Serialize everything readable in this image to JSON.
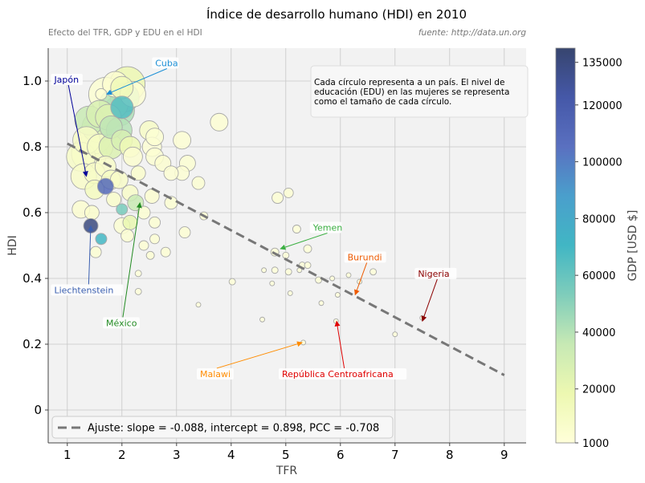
{
  "chart_data": {
    "type": "scatter",
    "title": "Índice de desarrollo humano (HDI) en 2010",
    "subtitle_left": "Efecto del TFR, GDP y EDU en el HDI",
    "subtitle_right": "fuente: http://data.un.org",
    "xlabel": "TFR",
    "ylabel": "HDI",
    "xlim": [
      0.65,
      9.4
    ],
    "ylim": [
      -0.1,
      1.1
    ],
    "xticks": [
      1,
      2,
      3,
      4,
      5,
      6,
      7,
      8,
      9
    ],
    "yticks": [
      0.0,
      0.2,
      0.4,
      0.6,
      0.8,
      1.0
    ],
    "ytick_labels": [
      "0",
      "0.2",
      "0.4",
      "0.6",
      "0.8",
      "1.0"
    ],
    "grid": true,
    "info_box": "Cada círculo representa a un país. El nivel de educación (EDU) en las mujeres se representa como el tamaño de cada círculo.",
    "info_lines": [
      "Cada círculo representa a un país. El nivel de",
      "educación (EDU) en las mujeres se representa",
      "como el tamaño de cada círculo."
    ],
    "fit": {
      "slope": -0.088,
      "intercept": 0.898,
      "pcc": -0.708,
      "x_range": [
        1,
        9
      ],
      "label": "Ajuste: slope = -0.088, intercept = 0.898, PCC = -0.708"
    },
    "colorbar": {
      "label": "GDP [USD $]",
      "min": 1000,
      "max": 140000,
      "ticks": [
        1000,
        20000,
        40000,
        60000,
        80000,
        100000,
        120000,
        135000
      ],
      "tick_labels": [
        "1000",
        "20000",
        "40000",
        "60000",
        "80000",
        "100000",
        "120000",
        "135000"
      ],
      "colors": [
        "#ffffd9",
        "#edf8b1",
        "#c7e9b4",
        "#7fcdbb",
        "#41b6c4",
        "#4a9fcc",
        "#5a70c0",
        "#4558a8",
        "#37456f"
      ]
    },
    "annotations": [
      {
        "text": "Japón",
        "color": "#000099",
        "target": [
          1.35,
          0.71
        ],
        "label_pos": [
          0.73,
          1.0
        ]
      },
      {
        "text": "Cuba",
        "color": "#1b8fd6",
        "target": [
          1.72,
          0.96
        ],
        "label_pos": [
          2.58,
          1.05
        ]
      },
      {
        "text": "Liechtenstein",
        "color": "#3a5fb0",
        "target": [
          1.43,
          0.56
        ],
        "label_pos": [
          0.73,
          0.36
        ]
      },
      {
        "text": "México",
        "color": "#228b22",
        "target": [
          2.33,
          0.63
        ],
        "label_pos": [
          1.68,
          0.26
        ]
      },
      {
        "text": "Yemen",
        "color": "#3cb043",
        "target": [
          4.9,
          0.49
        ],
        "label_pos": [
          5.47,
          0.55
        ]
      },
      {
        "text": "Burundi",
        "color": "#ee5a00",
        "target": [
          6.27,
          0.35
        ],
        "label_pos": [
          6.1,
          0.46
        ]
      },
      {
        "text": "Nigeria",
        "color": "#8b0000",
        "target": [
          7.5,
          0.27
        ],
        "label_pos": [
          7.39,
          0.41
        ]
      },
      {
        "text": "Malawi",
        "color": "#ff8c00",
        "target": [
          5.3,
          0.205
        ],
        "label_pos": [
          3.4,
          0.105
        ]
      },
      {
        "text": "República Centroafricana",
        "color": "#e00000",
        "target": [
          5.93,
          0.27
        ],
        "label_pos": [
          4.9,
          0.105
        ]
      }
    ],
    "points": [
      [
        1.62,
        0.96,
        7,
        3000
      ],
      [
        1.7,
        0.96,
        21,
        4000
      ],
      [
        1.88,
        0.99,
        16,
        5000
      ],
      [
        2.0,
        0.98,
        14,
        15000
      ],
      [
        2.1,
        0.99,
        22,
        18000
      ],
      [
        2.05,
        0.95,
        18,
        45000
      ],
      [
        2.2,
        0.96,
        16,
        3000
      ],
      [
        1.85,
        0.93,
        18,
        40000
      ],
      [
        1.95,
        0.91,
        19,
        42000
      ],
      [
        2.0,
        0.92,
        14,
        65000
      ],
      [
        1.6,
        0.9,
        17,
        28000
      ],
      [
        1.75,
        0.89,
        16,
        26000
      ],
      [
        1.4,
        0.88,
        18,
        35000
      ],
      [
        1.55,
        0.86,
        19,
        30000
      ],
      [
        1.8,
        0.86,
        14,
        38000
      ],
      [
        1.95,
        0.85,
        16,
        40000
      ],
      [
        1.5,
        0.83,
        21,
        10000
      ],
      [
        1.35,
        0.82,
        17,
        9000
      ],
      [
        1.4,
        0.78,
        22,
        9000
      ],
      [
        1.25,
        0.77,
        18,
        9000
      ],
      [
        1.6,
        0.8,
        16,
        10000
      ],
      [
        1.8,
        0.8,
        15,
        26000
      ],
      [
        2.0,
        0.82,
        13,
        28000
      ],
      [
        2.15,
        0.8,
        13,
        16000
      ],
      [
        2.5,
        0.85,
        12,
        9000
      ],
      [
        2.6,
        0.83,
        11,
        4000
      ],
      [
        2.55,
        0.8,
        12,
        3000
      ],
      [
        2.2,
        0.77,
        12,
        5000
      ],
      [
        2.6,
        0.77,
        11,
        4000
      ],
      [
        3.1,
        0.82,
        11,
        3000
      ],
      [
        2.75,
        0.75,
        10,
        5000
      ],
      [
        3.1,
        0.72,
        9,
        3000
      ],
      [
        2.9,
        0.72,
        9,
        3000
      ],
      [
        3.2,
        0.75,
        10,
        4000
      ],
      [
        3.4,
        0.69,
        8,
        4000
      ],
      [
        1.3,
        0.71,
        16,
        8000
      ],
      [
        1.5,
        0.72,
        13,
        9000
      ],
      [
        1.7,
        0.74,
        13,
        8000
      ],
      [
        1.5,
        0.67,
        12,
        12000
      ],
      [
        1.8,
        0.7,
        12,
        10000
      ],
      [
        1.7,
        0.68,
        10,
        110000
      ],
      [
        1.95,
        0.7,
        11,
        8000
      ],
      [
        2.15,
        0.66,
        10,
        8000
      ],
      [
        2.3,
        0.72,
        9,
        6000
      ],
      [
        2.55,
        0.65,
        9,
        5000
      ],
      [
        2.9,
        0.63,
        8,
        4000
      ],
      [
        2.4,
        0.6,
        8,
        4000
      ],
      [
        2.6,
        0.57,
        7,
        4000
      ],
      [
        2.15,
        0.57,
        9,
        20000
      ],
      [
        1.25,
        0.61,
        11,
        5000
      ],
      [
        1.45,
        0.6,
        9,
        6000
      ],
      [
        1.85,
        0.64,
        9,
        7000
      ],
      [
        2.0,
        0.61,
        7,
        55000
      ],
      [
        2.25,
        0.63,
        10,
        35000
      ],
      [
        2.0,
        0.56,
        10,
        4000
      ],
      [
        2.1,
        0.53,
        8,
        4000
      ],
      [
        2.4,
        0.5,
        6,
        3000
      ],
      [
        2.6,
        0.52,
        6,
        3000
      ],
      [
        2.8,
        0.48,
        6,
        3000
      ],
      [
        3.15,
        0.54,
        7,
        3000
      ],
      [
        1.52,
        0.48,
        7,
        4000
      ],
      [
        1.43,
        0.56,
        9,
        135000
      ],
      [
        1.62,
        0.52,
        7,
        70000
      ],
      [
        2.52,
        0.47,
        5,
        3000
      ],
      [
        3.5,
        0.59,
        5,
        3000
      ],
      [
        3.78,
        0.875,
        11,
        3000
      ],
      [
        4.85,
        0.645,
        7,
        3000
      ],
      [
        5.05,
        0.66,
        6,
        3000
      ],
      [
        5.2,
        0.55,
        5,
        2000
      ],
      [
        5.4,
        0.49,
        5,
        2000
      ],
      [
        4.8,
        0.48,
        5,
        2000
      ],
      [
        5.0,
        0.47,
        4,
        2000
      ],
      [
        5.3,
        0.44,
        4,
        2000
      ],
      [
        5.05,
        0.42,
        4,
        2000
      ],
      [
        5.4,
        0.44,
        4,
        2000
      ],
      [
        5.25,
        0.425,
        3,
        2000
      ],
      [
        4.6,
        0.425,
        3,
        1500
      ],
      [
        4.8,
        0.425,
        4,
        1500
      ],
      [
        6.15,
        0.41,
        3,
        1500
      ],
      [
        6.6,
        0.42,
        4,
        1500
      ],
      [
        5.6,
        0.395,
        4,
        1500
      ],
      [
        5.95,
        0.35,
        3,
        1000
      ],
      [
        5.85,
        0.4,
        3,
        1000
      ],
      [
        4.75,
        0.385,
        3,
        1500
      ],
      [
        4.02,
        0.39,
        4,
        1500
      ],
      [
        5.08,
        0.355,
        3,
        1500
      ],
      [
        6.35,
        0.39,
        3,
        1000
      ],
      [
        5.65,
        0.325,
        3,
        1000
      ],
      [
        3.4,
        0.32,
        3,
        1000
      ],
      [
        4.57,
        0.275,
        3,
        1000
      ],
      [
        5.92,
        0.27,
        3,
        1000
      ],
      [
        7.0,
        0.23,
        3,
        1000
      ],
      [
        7.5,
        0.28,
        3,
        1000
      ],
      [
        5.32,
        0.205,
        3,
        1000
      ],
      [
        2.3,
        0.36,
        4,
        1500
      ],
      [
        2.3,
        0.415,
        4,
        1500
      ]
    ]
  }
}
